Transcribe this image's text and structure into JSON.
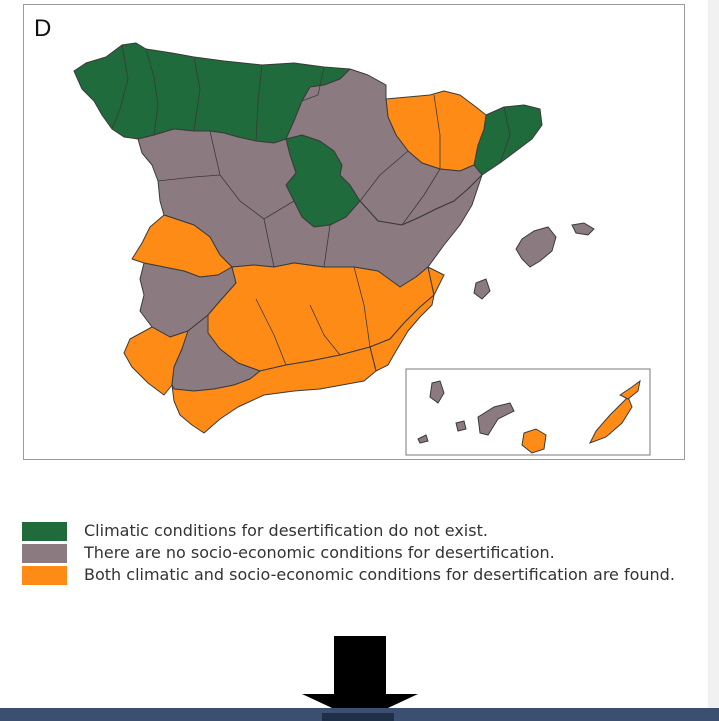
{
  "panel_letter": "D",
  "colors": {
    "green": "#1f6b3b",
    "grey": "#8b7b80",
    "orange": "#ff8b17",
    "border": "#3a3a3a"
  },
  "legend": [
    {
      "color": "#1f6b3b",
      "label": "Climatic conditions for desertification do not exist."
    },
    {
      "color": "#8b7b80",
      "label": "There are no socio-economic conditions for desertification."
    },
    {
      "color": "#ff8b17",
      "label": "Both climatic and socio-economic conditions for desertification are found."
    }
  ],
  "map": {
    "country": "Spain",
    "inset": "Canary Islands",
    "icons": [
      "down-arrow-icon"
    ]
  }
}
